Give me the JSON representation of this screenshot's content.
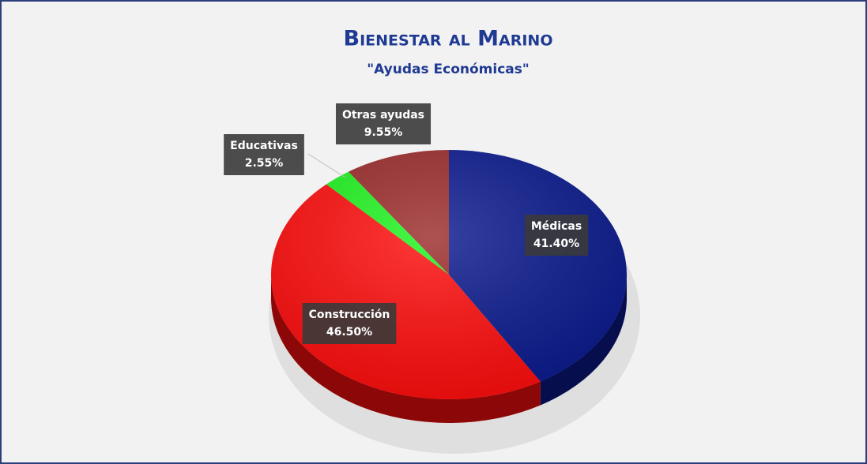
{
  "chart_data": {
    "type": "pie",
    "title": "Bienestar al Marino",
    "subtitle": "\"Ayudas Económicas\"",
    "categories": [
      "Médicas",
      "Construcción",
      "Educativas",
      "Otras ayudas"
    ],
    "values": [
      41.4,
      46.5,
      2.55,
      9.55
    ],
    "value_labels": [
      "41.40%",
      "46.50%",
      "2.55%",
      "9.55%"
    ],
    "colors": [
      "#0b1a8e",
      "#ff0d0d",
      "#1ff51f",
      "#9c2b2b"
    ]
  }
}
